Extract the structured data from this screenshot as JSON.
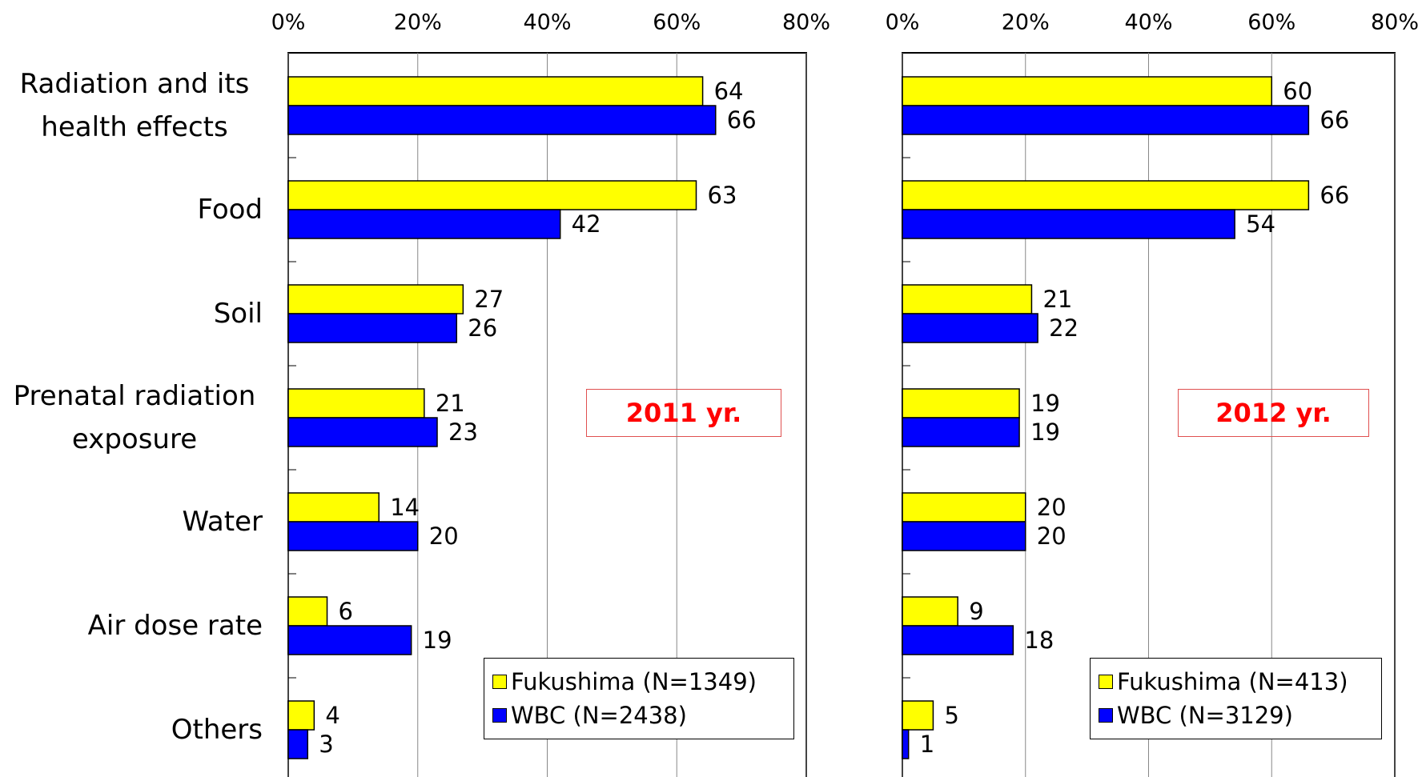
{
  "chart_data": [
    {
      "type": "barh",
      "annotation": "2011 yr.",
      "categories": [
        "Radiation and its health effects",
        "Food",
        "Soil",
        "Prenatal radiation exposure",
        "Water",
        "Air dose rate",
        "Others"
      ],
      "series": [
        {
          "name": "Fukushima (N=1349)",
          "color": "#ffff00",
          "values": [
            64,
            63,
            27,
            21,
            14,
            6,
            4
          ]
        },
        {
          "name": "WBC (N=2438)",
          "color": "#0000ff",
          "values": [
            66,
            42,
            26,
            23,
            20,
            19,
            3
          ]
        }
      ],
      "xlim": [
        0,
        80
      ],
      "xticks": [
        {
          "value": 0,
          "label": "0%"
        },
        {
          "value": 20,
          "label": "20%"
        },
        {
          "value": 40,
          "label": "40%"
        },
        {
          "value": 60,
          "label": "60%"
        },
        {
          "value": 80,
          "label": "80%"
        }
      ],
      "grid": true
    },
    {
      "type": "barh",
      "annotation": "2012 yr.",
      "series": [
        {
          "name": "Fukushima (N=413)",
          "color": "#ffff00",
          "values": [
            60,
            66,
            21,
            19,
            20,
            9,
            5
          ]
        },
        {
          "name": "WBC (N=3129)",
          "color": "#0000ff",
          "values": [
            66,
            54,
            22,
            19,
            20,
            18,
            1
          ]
        }
      ],
      "xlim": [
        0,
        80
      ],
      "xticks": [
        {
          "value": 0,
          "label": "0%"
        },
        {
          "value": 20,
          "label": "20%"
        },
        {
          "value": 40,
          "label": "40%"
        },
        {
          "value": 60,
          "label": "60%"
        },
        {
          "value": 80,
          "label": "80%"
        }
      ],
      "grid": true
    }
  ]
}
